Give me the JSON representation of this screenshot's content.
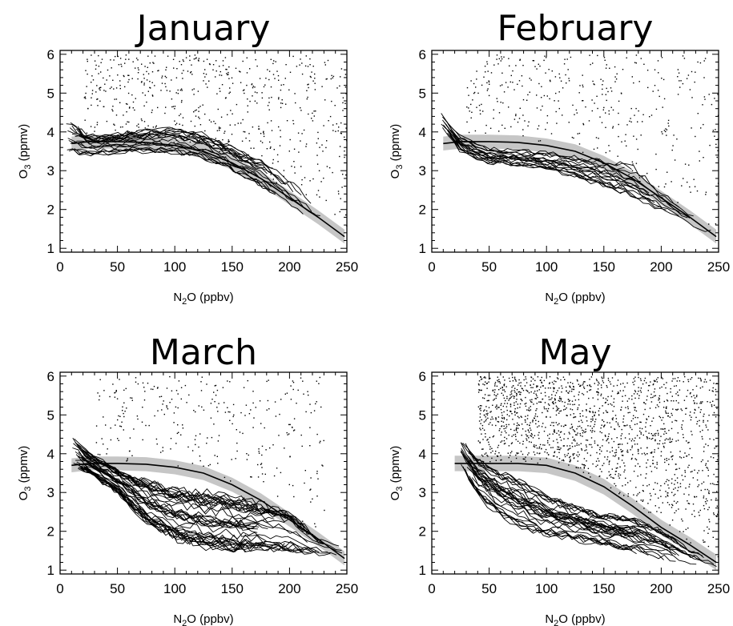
{
  "figure": {
    "x_tick_labels": [
      "0",
      "50",
      "100",
      "150",
      "200",
      "250"
    ],
    "y_tick_labels": [
      "1",
      "2",
      "3",
      "4",
      "5",
      "6"
    ],
    "xlabel": {
      "main": "N",
      "sub": "2",
      "rest": "O (ppbv)"
    },
    "ylabel": {
      "main": "O",
      "sub": "3",
      "rest": " (ppmv)"
    }
  },
  "chart_data": [
    {
      "type": "scatter",
      "title": "January",
      "xlabel": "N2O (ppbv)",
      "ylabel": "O3 (ppmv)",
      "xlim": [
        0,
        250
      ],
      "ylim": [
        0.9,
        6.1
      ],
      "grid": false,
      "reference_curve": {
        "x": [
          10,
          25,
          50,
          75,
          100,
          125,
          150,
          175,
          200,
          225,
          248
        ],
        "y": [
          3.7,
          3.75,
          3.75,
          3.73,
          3.65,
          3.5,
          3.2,
          2.8,
          2.3,
          1.8,
          1.3
        ],
        "band_halfwidth": 0.18
      },
      "profile_lines": 20,
      "profile_envelope": {
        "x": [
          5,
          25,
          50,
          75,
          100,
          125,
          150,
          175,
          200,
          225,
          250
        ],
        "upper": [
          4.4,
          3.9,
          3.95,
          4.05,
          4.1,
          3.95,
          3.6,
          3.3,
          2.8,
          2.0,
          1.8
        ],
        "lower": [
          3.5,
          3.4,
          3.45,
          3.5,
          3.45,
          3.3,
          3.0,
          2.6,
          2.1,
          1.7,
          1.3
        ]
      },
      "scatter_cloud": {
        "x_range": [
          20,
          250
        ],
        "upper": 6.0,
        "point_count": 600
      }
    },
    {
      "type": "scatter",
      "title": "February",
      "xlabel": "N2O (ppbv)",
      "ylabel": "O3 (ppmv)",
      "xlim": [
        0,
        250
      ],
      "ylim": [
        0.9,
        6.1
      ],
      "grid": false,
      "reference_curve": {
        "x": [
          10,
          25,
          50,
          75,
          100,
          125,
          150,
          175,
          200,
          225,
          248
        ],
        "y": [
          3.7,
          3.75,
          3.75,
          3.73,
          3.65,
          3.5,
          3.2,
          2.8,
          2.3,
          1.8,
          1.3
        ],
        "band_halfwidth": 0.18
      },
      "profile_lines": 18,
      "profile_envelope": {
        "x": [
          8,
          25,
          50,
          75,
          100,
          125,
          150,
          175,
          200,
          225,
          250
        ],
        "upper": [
          4.5,
          3.9,
          3.6,
          3.55,
          3.5,
          3.4,
          3.3,
          3.2,
          2.5,
          1.9,
          1.7
        ],
        "lower": [
          4.2,
          3.5,
          3.2,
          3.15,
          3.05,
          2.85,
          2.6,
          2.3,
          2.0,
          1.6,
          1.3
        ]
      },
      "scatter_cloud": {
        "x_range": [
          30,
          250
        ],
        "upper": 6.0,
        "point_count": 380
      }
    },
    {
      "type": "scatter",
      "title": "March",
      "xlabel": "N2O (ppbv)",
      "ylabel": "O3 (ppmv)",
      "xlim": [
        0,
        250
      ],
      "ylim": [
        0.9,
        6.1
      ],
      "grid": false,
      "reference_curve": {
        "x": [
          10,
          25,
          50,
          75,
          100,
          125,
          150,
          175,
          200,
          225,
          248
        ],
        "y": [
          3.7,
          3.75,
          3.75,
          3.73,
          3.65,
          3.5,
          3.2,
          2.8,
          2.3,
          1.8,
          1.3
        ],
        "band_halfwidth": 0.18
      },
      "profile_lines": 40,
      "profile_envelope": {
        "x": [
          10,
          25,
          50,
          75,
          100,
          125,
          150,
          175,
          200,
          225,
          250
        ],
        "upper": [
          4.4,
          4.0,
          3.6,
          3.3,
          3.1,
          3.0,
          2.9,
          2.7,
          2.5,
          1.8,
          1.5
        ],
        "lower": [
          3.7,
          3.5,
          3.0,
          2.2,
          1.8,
          1.6,
          1.5,
          1.5,
          1.5,
          1.4,
          1.3
        ]
      },
      "scatter_cloud": {
        "x_range": [
          30,
          230
        ],
        "upper": 6.0,
        "point_count": 300
      }
    },
    {
      "type": "scatter",
      "title": "May",
      "xlabel": "N2O (ppbv)",
      "ylabel": "O3 (ppmv)",
      "xlim": [
        0,
        250
      ],
      "ylim": [
        0.9,
        6.1
      ],
      "grid": false,
      "reference_curve": {
        "x": [
          20,
          50,
          75,
          100,
          125,
          150,
          175,
          200,
          225,
          248
        ],
        "y": [
          3.75,
          3.75,
          3.75,
          3.7,
          3.5,
          3.15,
          2.65,
          2.1,
          1.65,
          1.2
        ],
        "band_halfwidth": 0.2
      },
      "profile_lines": 30,
      "profile_envelope": {
        "x": [
          25,
          40,
          60,
          80,
          100,
          125,
          150,
          175,
          200,
          225,
          250
        ],
        "upper": [
          4.4,
          3.8,
          3.5,
          3.2,
          2.9,
          2.6,
          2.4,
          2.3,
          2.0,
          1.5,
          1.2
        ],
        "lower": [
          3.7,
          2.9,
          2.4,
          2.1,
          1.9,
          1.8,
          1.65,
          1.5,
          1.3,
          1.1,
          1.0
        ]
      },
      "scatter_cloud": {
        "x_range": [
          40,
          250
        ],
        "upper": 6.0,
        "point_count": 1600
      }
    }
  ]
}
